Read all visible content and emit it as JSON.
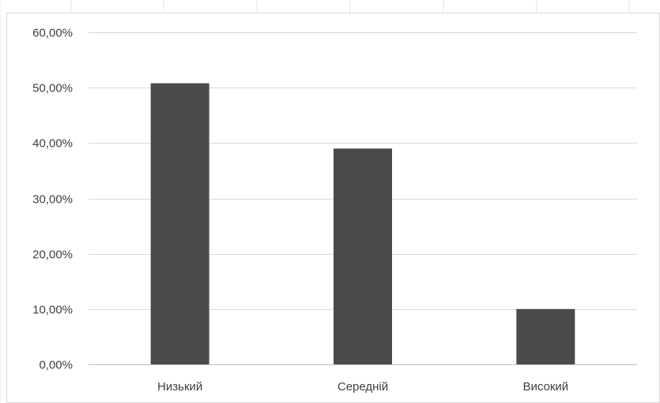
{
  "chart_data": {
    "type": "bar",
    "categories": [
      "Низький",
      "Середній",
      "Високий"
    ],
    "values": [
      0.508,
      0.39,
      0.1
    ],
    "ylim": [
      0,
      0.6
    ],
    "y_ticks": [
      0,
      0.1,
      0.2,
      0.3,
      0.4,
      0.5,
      0.6
    ],
    "y_tick_labels": [
      "0,00%",
      "10,00%",
      "20,00%",
      "30,00%",
      "40,00%",
      "50,00%",
      "60,00%"
    ],
    "title": "",
    "xlabel": "",
    "ylabel": "",
    "grid": true,
    "legend": "none",
    "colors": {
      "bar": "#4a4a4a",
      "grid": "#d9d9d9",
      "axis": "#bfbfbf",
      "text": "#404040"
    }
  }
}
